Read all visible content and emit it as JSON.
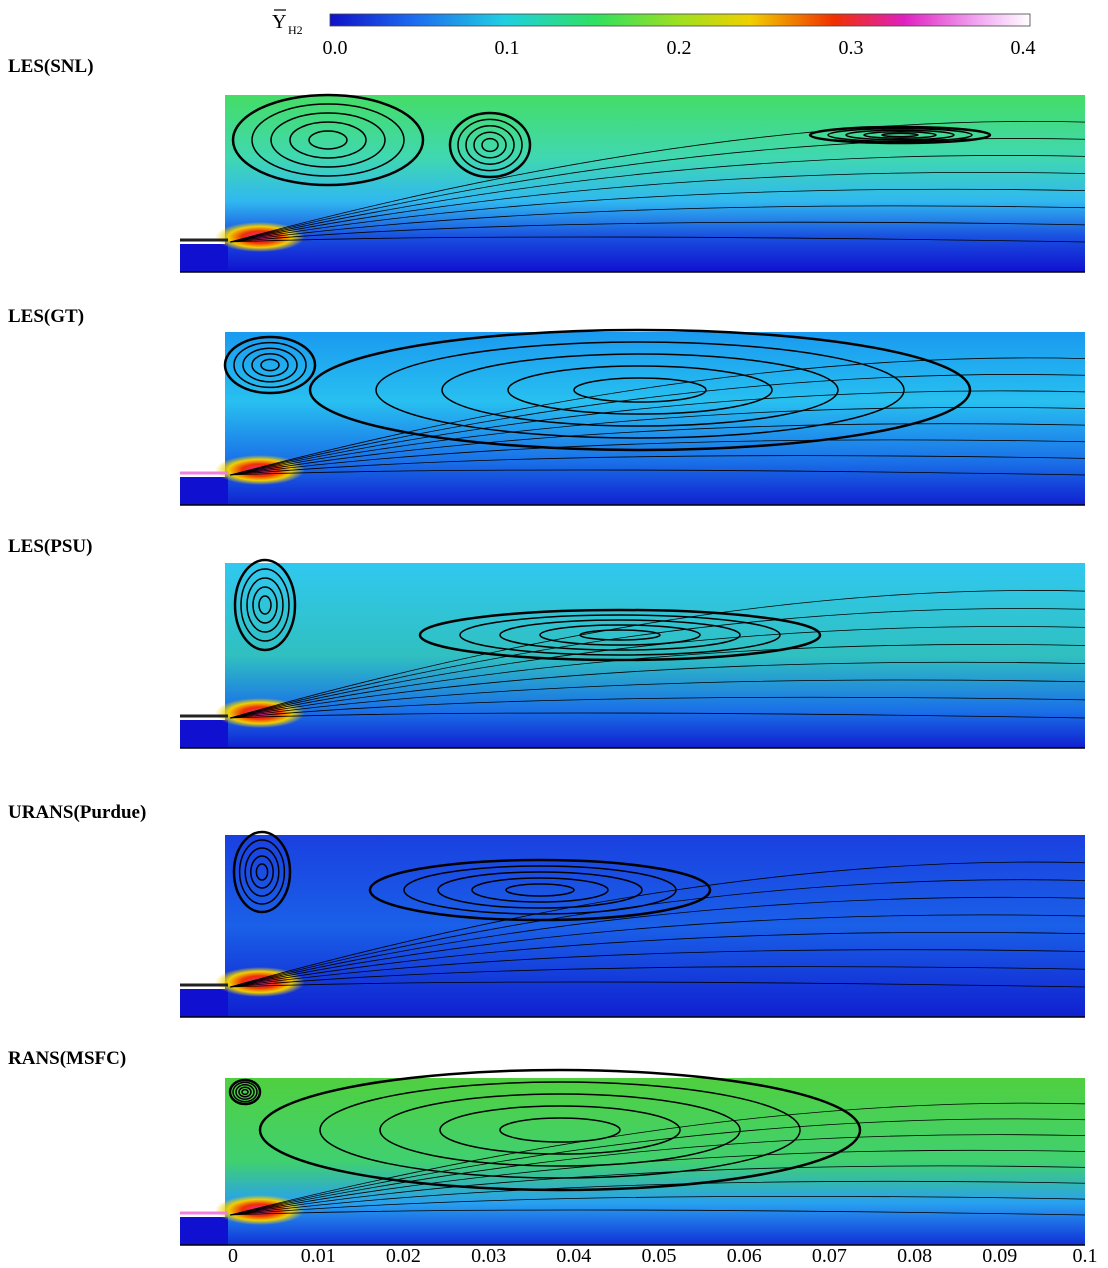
{
  "colorbar": {
    "symbol": "Y",
    "subscript": "H2",
    "ticks": [
      "0.0",
      "0.1",
      "0.2",
      "0.3",
      "0.4"
    ]
  },
  "panels": [
    {
      "label": "LES(SNL)"
    },
    {
      "label": "LES(GT)"
    },
    {
      "label": "LES(PSU)"
    },
    {
      "label": "URANS(Purdue)"
    },
    {
      "label": "RANS(MSFC)"
    }
  ],
  "x_axis": {
    "ticks": [
      "0",
      "0.01",
      "0.02",
      "0.03",
      "0.04",
      "0.05",
      "0.06",
      "0.07",
      "0.08",
      "0.09",
      "0.1"
    ]
  }
}
